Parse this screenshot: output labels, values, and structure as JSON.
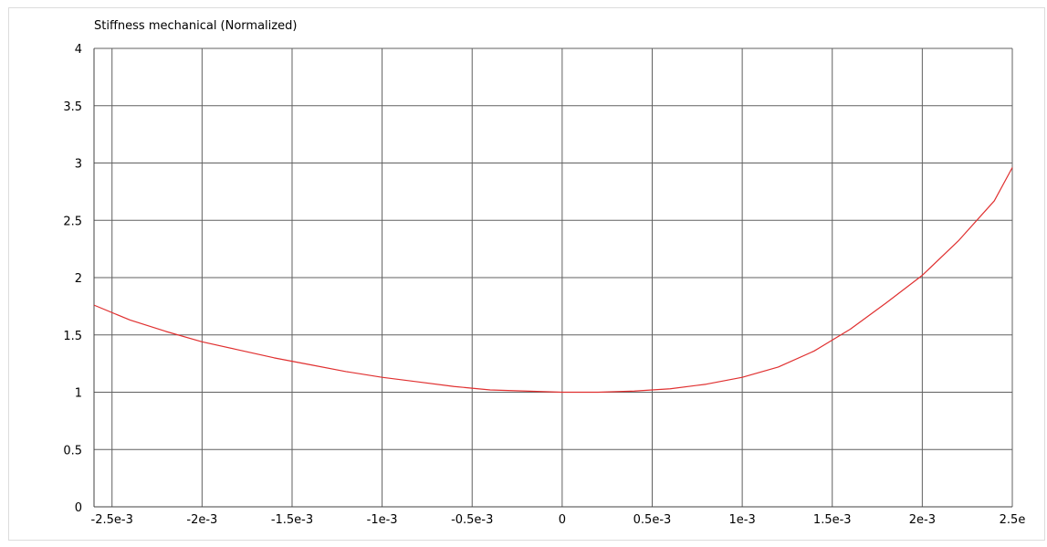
{
  "chart_data": {
    "type": "line",
    "title": "Stiffness mechanical (Normalized)",
    "xlabel": "",
    "ylabel": "",
    "xlim": [
      -0.0026,
      0.0025
    ],
    "ylim": [
      0,
      4
    ],
    "grid": true,
    "x_ticks": [
      {
        "value": -0.0025,
        "label": "-2.5e-3"
      },
      {
        "value": -0.002,
        "label": "-2e-3"
      },
      {
        "value": -0.0015,
        "label": "-1.5e-3"
      },
      {
        "value": -0.001,
        "label": "-1e-3"
      },
      {
        "value": -0.0005,
        "label": "-0.5e-3"
      },
      {
        "value": 0,
        "label": "0"
      },
      {
        "value": 0.0005,
        "label": "0.5e-3"
      },
      {
        "value": 0.001,
        "label": "1e-3"
      },
      {
        "value": 0.0015,
        "label": "1.5e-3"
      },
      {
        "value": 0.002,
        "label": "2e-3"
      },
      {
        "value": 0.0025,
        "label": "2.5e"
      }
    ],
    "y_ticks": [
      {
        "value": 0,
        "label": "0"
      },
      {
        "value": 0.5,
        "label": "0.5"
      },
      {
        "value": 1,
        "label": "1"
      },
      {
        "value": 1.5,
        "label": "1.5"
      },
      {
        "value": 2,
        "label": "2"
      },
      {
        "value": 2.5,
        "label": "2.5"
      },
      {
        "value": 3,
        "label": "3"
      },
      {
        "value": 3.5,
        "label": "3.5"
      },
      {
        "value": 4,
        "label": "4"
      }
    ],
    "series": [
      {
        "color": "#e03030",
        "x": [
          -0.0026,
          -0.0024,
          -0.0022,
          -0.002,
          -0.0018,
          -0.0016,
          -0.0014,
          -0.0012,
          -0.001,
          -0.0008,
          -0.0006,
          -0.0004,
          -0.0002,
          0,
          0.0002,
          0.0004,
          0.0006,
          0.0008,
          0.001,
          0.0012,
          0.0014,
          0.0016,
          0.0018,
          0.002,
          0.0022,
          0.0024,
          0.0025
        ],
        "y": [
          1.76,
          1.63,
          1.53,
          1.44,
          1.37,
          1.3,
          1.24,
          1.18,
          1.13,
          1.09,
          1.05,
          1.02,
          1.01,
          1.0,
          1.0,
          1.01,
          1.03,
          1.07,
          1.13,
          1.22,
          1.36,
          1.55,
          1.78,
          2.02,
          2.32,
          2.67,
          2.96
        ]
      }
    ]
  }
}
